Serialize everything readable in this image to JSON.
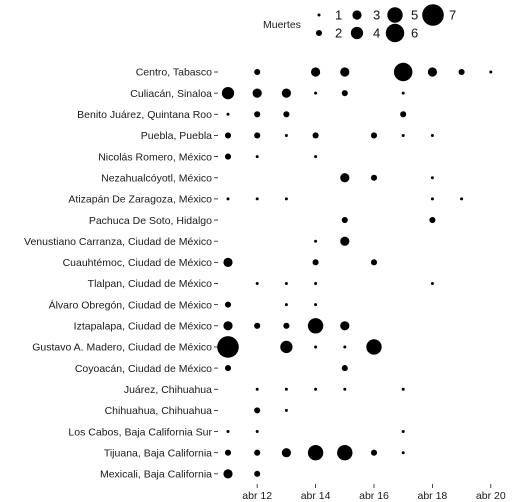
{
  "chart_data": {
    "type": "scatter",
    "title": "",
    "xlabel": "",
    "ylabel": "",
    "legend": {
      "title": "Muertes",
      "position": "top",
      "values": [
        1,
        2,
        3,
        4,
        5,
        6,
        7
      ]
    },
    "x_ticks": [
      {
        "date": "2020-04-12",
        "label": "abr 12"
      },
      {
        "date": "2020-04-14",
        "label": "abr 14"
      },
      {
        "date": "2020-04-16",
        "label": "abr 16"
      },
      {
        "date": "2020-04-18",
        "label": "abr 18"
      },
      {
        "date": "2020-04-20",
        "label": "abr 20"
      }
    ],
    "xlim": [
      "2020-04-11",
      "2020-04-20"
    ],
    "grid": false,
    "categories": [
      "Centro, Tabasco",
      "Culiacán, Sinaloa",
      "Benito Juárez, Quintana Roo",
      "Puebla, Puebla",
      "Nicolás Romero, México",
      "Nezahualcóyotl, México",
      "Atizapán De Zaragoza, México",
      "Pachuca De Soto, Hidalgo",
      "Venustiano Carranza, Ciudad de México",
      "Cuauhtémoc, Ciudad de México",
      "Tlalpan, Ciudad de México",
      "Álvaro Obregón, Ciudad de México",
      "Iztapalapa, Ciudad de México",
      "Gustavo A. Madero, Ciudad de México",
      "Coyoacán, Ciudad de México",
      "Juárez, Chihuahua",
      "Chihuahua, Chihuahua",
      "Los Cabos, Baja California Sur",
      "Tijuana, Baja California",
      "Mexicali, Baja California"
    ],
    "points": [
      {
        "category": "Centro, Tabasco",
        "x": "2020-04-12",
        "deaths": 2
      },
      {
        "category": "Centro, Tabasco",
        "x": "2020-04-14",
        "deaths": 3
      },
      {
        "category": "Centro, Tabasco",
        "x": "2020-04-15",
        "deaths": 3
      },
      {
        "category": "Centro, Tabasco",
        "x": "2020-04-17",
        "deaths": 6
      },
      {
        "category": "Centro, Tabasco",
        "x": "2020-04-18",
        "deaths": 3
      },
      {
        "category": "Centro, Tabasco",
        "x": "2020-04-19",
        "deaths": 2
      },
      {
        "category": "Centro, Tabasco",
        "x": "2020-04-20",
        "deaths": 1
      },
      {
        "category": "Culiacán, Sinaloa",
        "x": "2020-04-11",
        "deaths": 4
      },
      {
        "category": "Culiacán, Sinaloa",
        "x": "2020-04-12",
        "deaths": 3
      },
      {
        "category": "Culiacán, Sinaloa",
        "x": "2020-04-13",
        "deaths": 3
      },
      {
        "category": "Culiacán, Sinaloa",
        "x": "2020-04-14",
        "deaths": 1
      },
      {
        "category": "Culiacán, Sinaloa",
        "x": "2020-04-15",
        "deaths": 2
      },
      {
        "category": "Culiacán, Sinaloa",
        "x": "2020-04-17",
        "deaths": 1
      },
      {
        "category": "Benito Juárez, Quintana Roo",
        "x": "2020-04-11",
        "deaths": 1
      },
      {
        "category": "Benito Juárez, Quintana Roo",
        "x": "2020-04-12",
        "deaths": 2
      },
      {
        "category": "Benito Juárez, Quintana Roo",
        "x": "2020-04-13",
        "deaths": 2
      },
      {
        "category": "Benito Juárez, Quintana Roo",
        "x": "2020-04-17",
        "deaths": 2
      },
      {
        "category": "Puebla, Puebla",
        "x": "2020-04-11",
        "deaths": 2
      },
      {
        "category": "Puebla, Puebla",
        "x": "2020-04-12",
        "deaths": 2
      },
      {
        "category": "Puebla, Puebla",
        "x": "2020-04-13",
        "deaths": 1
      },
      {
        "category": "Puebla, Puebla",
        "x": "2020-04-14",
        "deaths": 2
      },
      {
        "category": "Puebla, Puebla",
        "x": "2020-04-16",
        "deaths": 2
      },
      {
        "category": "Puebla, Puebla",
        "x": "2020-04-17",
        "deaths": 1
      },
      {
        "category": "Puebla, Puebla",
        "x": "2020-04-18",
        "deaths": 1
      },
      {
        "category": "Nicolás Romero, México",
        "x": "2020-04-11",
        "deaths": 2
      },
      {
        "category": "Nicolás Romero, México",
        "x": "2020-04-12",
        "deaths": 1
      },
      {
        "category": "Nicolás Romero, México",
        "x": "2020-04-14",
        "deaths": 1
      },
      {
        "category": "Nezahualcóyotl, México",
        "x": "2020-04-15",
        "deaths": 3
      },
      {
        "category": "Nezahualcóyotl, México",
        "x": "2020-04-16",
        "deaths": 2
      },
      {
        "category": "Nezahualcóyotl, México",
        "x": "2020-04-18",
        "deaths": 1
      },
      {
        "category": "Atizapán De Zaragoza, México",
        "x": "2020-04-11",
        "deaths": 1
      },
      {
        "category": "Atizapán De Zaragoza, México",
        "x": "2020-04-12",
        "deaths": 1
      },
      {
        "category": "Atizapán De Zaragoza, México",
        "x": "2020-04-13",
        "deaths": 1
      },
      {
        "category": "Atizapán De Zaragoza, México",
        "x": "2020-04-18",
        "deaths": 1
      },
      {
        "category": "Atizapán De Zaragoza, México",
        "x": "2020-04-19",
        "deaths": 1
      },
      {
        "category": "Pachuca De Soto, Hidalgo",
        "x": "2020-04-15",
        "deaths": 2
      },
      {
        "category": "Pachuca De Soto, Hidalgo",
        "x": "2020-04-18",
        "deaths": 2
      },
      {
        "category": "Venustiano Carranza, Ciudad de México",
        "x": "2020-04-14",
        "deaths": 1
      },
      {
        "category": "Venustiano Carranza, Ciudad de México",
        "x": "2020-04-15",
        "deaths": 3
      },
      {
        "category": "Cuauhtémoc, Ciudad de México",
        "x": "2020-04-11",
        "deaths": 3
      },
      {
        "category": "Cuauhtémoc, Ciudad de México",
        "x": "2020-04-14",
        "deaths": 2
      },
      {
        "category": "Cuauhtémoc, Ciudad de México",
        "x": "2020-04-16",
        "deaths": 2
      },
      {
        "category": "Tlalpan, Ciudad de México",
        "x": "2020-04-12",
        "deaths": 1
      },
      {
        "category": "Tlalpan, Ciudad de México",
        "x": "2020-04-13",
        "deaths": 1
      },
      {
        "category": "Tlalpan, Ciudad de México",
        "x": "2020-04-14",
        "deaths": 1
      },
      {
        "category": "Tlalpan, Ciudad de México",
        "x": "2020-04-18",
        "deaths": 1
      },
      {
        "category": "Álvaro Obregón, Ciudad de México",
        "x": "2020-04-11",
        "deaths": 2
      },
      {
        "category": "Álvaro Obregón, Ciudad de México",
        "x": "2020-04-13",
        "deaths": 1
      },
      {
        "category": "Álvaro Obregón, Ciudad de México",
        "x": "2020-04-14",
        "deaths": 1
      },
      {
        "category": "Iztapalapa, Ciudad de México",
        "x": "2020-04-11",
        "deaths": 3
      },
      {
        "category": "Iztapalapa, Ciudad de México",
        "x": "2020-04-12",
        "deaths": 2
      },
      {
        "category": "Iztapalapa, Ciudad de México",
        "x": "2020-04-13",
        "deaths": 2
      },
      {
        "category": "Iztapalapa, Ciudad de México",
        "x": "2020-04-14",
        "deaths": 5
      },
      {
        "category": "Iztapalapa, Ciudad de México",
        "x": "2020-04-15",
        "deaths": 3
      },
      {
        "category": "Gustavo A. Madero, Ciudad de México",
        "x": "2020-04-11",
        "deaths": 7
      },
      {
        "category": "Gustavo A. Madero, Ciudad de México",
        "x": "2020-04-13",
        "deaths": 4
      },
      {
        "category": "Gustavo A. Madero, Ciudad de México",
        "x": "2020-04-14",
        "deaths": 1
      },
      {
        "category": "Gustavo A. Madero, Ciudad de México",
        "x": "2020-04-15",
        "deaths": 1
      },
      {
        "category": "Gustavo A. Madero, Ciudad de México",
        "x": "2020-04-16",
        "deaths": 5
      },
      {
        "category": "Coyoacán, Ciudad de México",
        "x": "2020-04-11",
        "deaths": 2
      },
      {
        "category": "Coyoacán, Ciudad de México",
        "x": "2020-04-15",
        "deaths": 2
      },
      {
        "category": "Juárez, Chihuahua",
        "x": "2020-04-12",
        "deaths": 1
      },
      {
        "category": "Juárez, Chihuahua",
        "x": "2020-04-13",
        "deaths": 1
      },
      {
        "category": "Juárez, Chihuahua",
        "x": "2020-04-14",
        "deaths": 1
      },
      {
        "category": "Juárez, Chihuahua",
        "x": "2020-04-15",
        "deaths": 1
      },
      {
        "category": "Juárez, Chihuahua",
        "x": "2020-04-17",
        "deaths": 1
      },
      {
        "category": "Chihuahua, Chihuahua",
        "x": "2020-04-12",
        "deaths": 2
      },
      {
        "category": "Chihuahua, Chihuahua",
        "x": "2020-04-13",
        "deaths": 1
      },
      {
        "category": "Los Cabos, Baja California Sur",
        "x": "2020-04-11",
        "deaths": 1
      },
      {
        "category": "Los Cabos, Baja California Sur",
        "x": "2020-04-12",
        "deaths": 1
      },
      {
        "category": "Los Cabos, Baja California Sur",
        "x": "2020-04-17",
        "deaths": 1
      },
      {
        "category": "Tijuana, Baja California",
        "x": "2020-04-11",
        "deaths": 2
      },
      {
        "category": "Tijuana, Baja California",
        "x": "2020-04-12",
        "deaths": 2
      },
      {
        "category": "Tijuana, Baja California",
        "x": "2020-04-13",
        "deaths": 3
      },
      {
        "category": "Tijuana, Baja California",
        "x": "2020-04-14",
        "deaths": 5
      },
      {
        "category": "Tijuana, Baja California",
        "x": "2020-04-15",
        "deaths": 5
      },
      {
        "category": "Tijuana, Baja California",
        "x": "2020-04-16",
        "deaths": 2
      },
      {
        "category": "Tijuana, Baja California",
        "x": "2020-04-17",
        "deaths": 1
      },
      {
        "category": "Mexicali, Baja California",
        "x": "2020-04-11",
        "deaths": 3
      },
      {
        "category": "Mexicali, Baja California",
        "x": "2020-04-12",
        "deaths": 2
      }
    ],
    "colors": {
      "points": "#000000",
      "text": "#1a1a1a",
      "background": "#ffffff"
    }
  }
}
